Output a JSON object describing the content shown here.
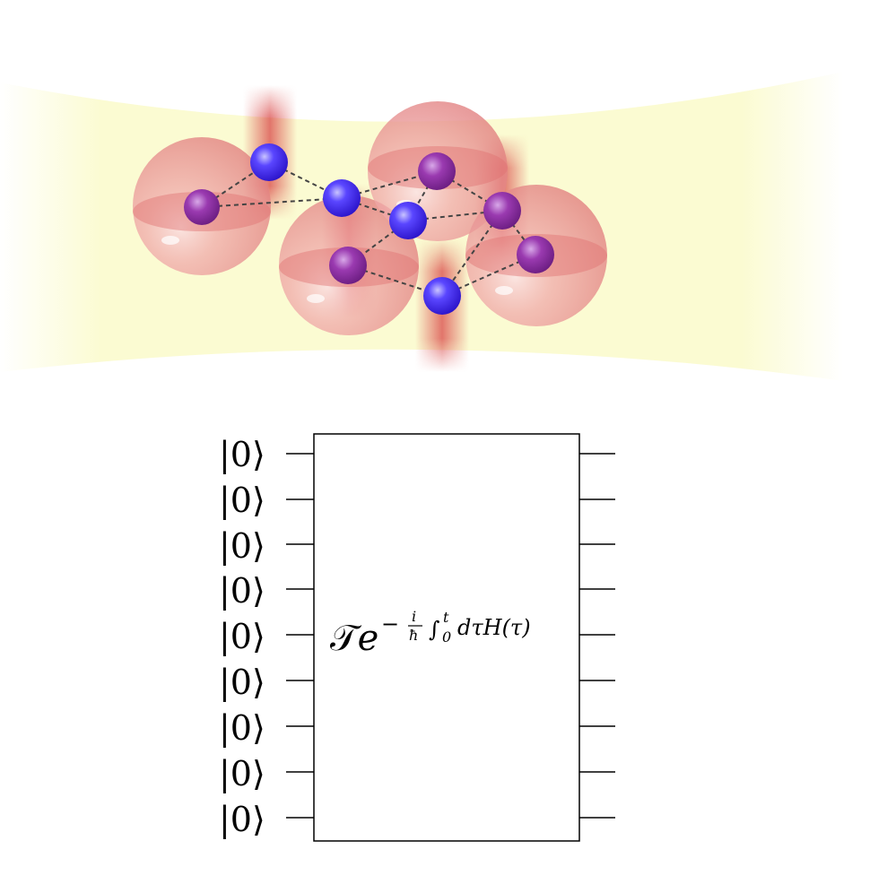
{
  "circuit": {
    "inputs": [
      "|0⟩",
      "|0⟩",
      "|0⟩",
      "|0⟩",
      "|0⟩",
      "|0⟩",
      "|0⟩",
      "|0⟩",
      "|0⟩"
    ],
    "operator": {
      "prefix": "𝒯",
      "base": "e",
      "exp_sign": "−",
      "frac_num": "i",
      "frac_den": "ħ",
      "integral": "∫",
      "int_lower": "0",
      "int_upper": "t",
      "integrand": "dτH(τ)"
    }
  },
  "colors": {
    "beam": "#fbfbd2",
    "trap_sphere": "#e88b8b",
    "trap_beam": "#d94848",
    "rydberg_atom": "#3a22f0",
    "ground_atom": "#8a2a9a",
    "bond": "#444444"
  },
  "atoms": {
    "rydberg_count": 4,
    "trapped_count": 5
  }
}
